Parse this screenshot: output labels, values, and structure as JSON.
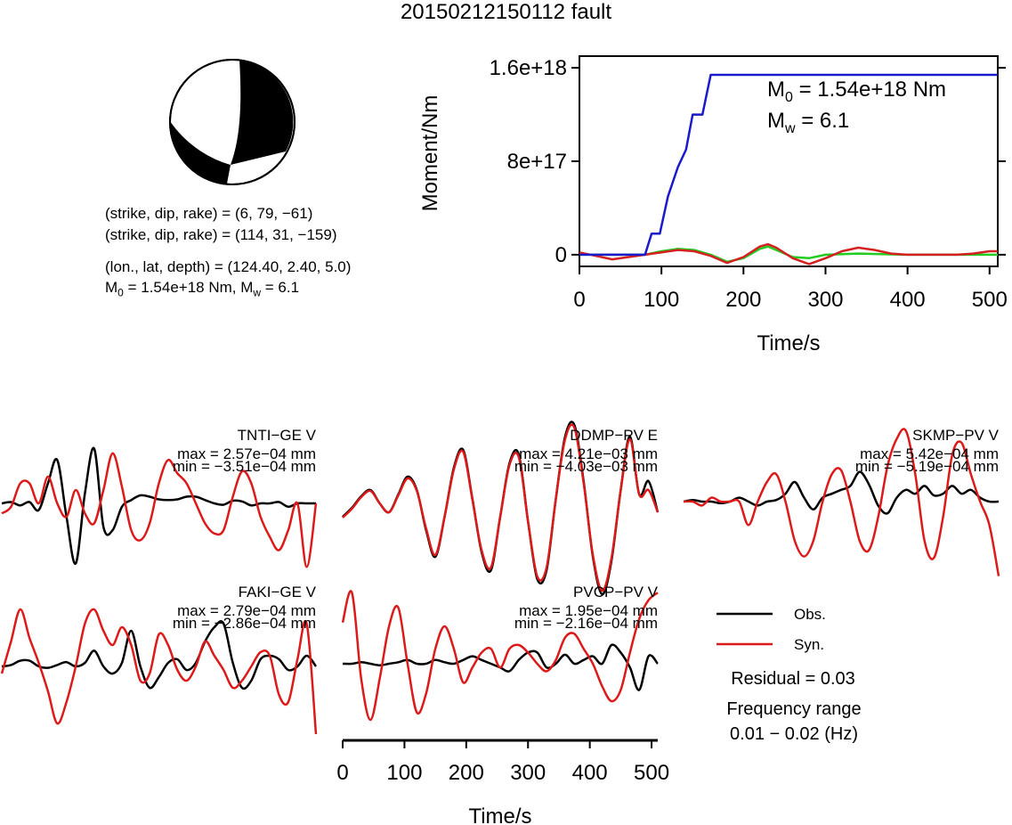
{
  "title": "20150212150112 fault",
  "mechanism": {
    "line1": "(strike, dip, rake) = (6, 79, −61)",
    "line2": "(strike, dip, rake) = (114, 31, −159)",
    "line3": "(lon., lat, depth) = (124.40, 2.40, 5.0)",
    "m0_prefix": "M",
    "m0_sub": "0",
    "m0_text": " = 1.54e+18 Nm, M",
    "mw_sub": "w",
    "mw_text": " = 6.1"
  },
  "moment_plot": {
    "ylabel": "Moment/Nm",
    "xlabel": "Time/s",
    "yticks": [
      "0",
      "8e+17",
      "1.6e+18"
    ],
    "xticks": [
      "0",
      "100",
      "200",
      "300",
      "400",
      "500"
    ],
    "m0_annotation": {
      "prefix": "M",
      "sub": "0",
      "text": " = 1.54e+18 Nm"
    },
    "mw_annotation": {
      "prefix": "M",
      "sub": "w",
      "text": " = 6.1"
    },
    "colors": {
      "cumulative": "#1a1acc",
      "red": "#d42020",
      "green": "#22cc22"
    }
  },
  "waveform_axis": {
    "xlabel": "Time/s",
    "xticks": [
      "0",
      "100",
      "200",
      "300",
      "400",
      "500"
    ]
  },
  "stations": [
    {
      "name": "TNTI−GE V",
      "max": "max = 2.57e−04 mm",
      "min": "min = −3.51e−04 mm"
    },
    {
      "name": "DDMP−PV E",
      "max": "max = 4.21e−03 mm",
      "min": "min = −4.03e−03 mm"
    },
    {
      "name": "SKMP−PV V",
      "max": "max = 5.42e−04 mm",
      "min": "min = −5.19e−04 mm"
    },
    {
      "name": "FAKI−GE V",
      "max": "max = 2.79e−04 mm",
      "min": "min = −2.86e−04 mm"
    },
    {
      "name": "PVCP−PV V",
      "max": "max = 1.95e−04 mm",
      "min": "min = −2.16e−04 mm"
    }
  ],
  "legend": {
    "obs": "Obs.",
    "syn": "Syn.",
    "obs_color": "#000000",
    "syn_color": "#dd1a1a",
    "residual": "Residual = 0.03",
    "freq_label": "Frequency range",
    "freq_value": "0.01 − 0.02 (Hz)"
  },
  "chart_data": [
    {
      "type": "line",
      "xlabel": "Time/s",
      "ylabel": "Moment/Nm",
      "xlim": [
        0,
        510
      ],
      "ylim": [
        -1e+17,
        1.7e+18
      ],
      "xticks": [
        0,
        100,
        200,
        300,
        400,
        500
      ],
      "yticks": [
        0,
        8e+17,
        1.6e+18
      ],
      "series": [
        {
          "color": "#1a1acc",
          "x": [
            0,
            80,
            88,
            98,
            108,
            120,
            130,
            138,
            142,
            150,
            160,
            510
          ],
          "y": [
            0,
            0,
            1.8e+17,
            1.8e+17,
            5e+17,
            7.5e+17,
            9e+17,
            1.2e+18,
            1.2e+18,
            1.2e+18,
            1.54e+18,
            1.54e+18
          ]
        },
        {
          "color": "#d42020",
          "x": [
            0,
            20,
            40,
            60,
            80,
            100,
            120,
            140,
            160,
            180,
            200,
            220,
            230,
            240,
            260,
            280,
            300,
            320,
            340,
            360,
            380,
            400,
            420,
            440,
            460,
            480,
            500,
            510
          ],
          "y": [
            2e+16,
            -1e+16,
            -4e+16,
            -2e+16,
            0,
            2e+16,
            4e+16,
            3e+16,
            -1e+16,
            -7e+16,
            -2e+16,
            7e+16,
            9e+16,
            6e+16,
            -3e+16,
            -8e+16,
            -3e+16,
            3e+16,
            6e+16,
            4e+16,
            1e+16,
            0,
            0,
            0,
            0,
            1e+16,
            3e+16,
            3e+16
          ]
        },
        {
          "color": "#22cc22",
          "x": [
            0,
            40,
            80,
            100,
            120,
            140,
            160,
            180,
            200,
            220,
            230,
            240,
            260,
            280,
            300,
            340,
            400,
            450,
            510
          ],
          "y": [
            0,
            0,
            0,
            3e+16,
            5e+16,
            4e+16,
            0,
            -6e+16,
            -3e+16,
            5e+16,
            7e+16,
            4e+16,
            -2e+16,
            -3e+16,
            0,
            1e+16,
            0,
            0,
            0
          ]
        }
      ]
    },
    {
      "type": "line",
      "station": "TNTI−GE V",
      "x_range": [
        0,
        510
      ],
      "y_range": [
        -1,
        1
      ],
      "series": [
        {
          "name": "Obs.",
          "y": [
            0.0,
            0.02,
            -0.03,
            0.02,
            -0.1,
            0.3,
            0.65,
            -0.2,
            -0.9,
            0.15,
            0.82,
            -0.35,
            -0.4,
            -0.05,
            0.05,
            0.12,
            0.1,
            0.06,
            0.05,
            0.06,
            0.1,
            0.1,
            0.05,
            0.0,
            -0.02,
            0.04,
            0.03,
            -0.03,
            0.0,
            0.0,
            0.02,
            -0.05,
            0.0,
            0.0,
            0.0
          ]
        },
        {
          "name": "Syn.",
          "y": [
            -0.15,
            -0.05,
            0.3,
            0.3,
            0.0,
            0.4,
            0.0,
            -0.2,
            0.2,
            -0.15,
            -0.3,
            0.2,
            0.75,
            0.25,
            -0.4,
            -0.55,
            -0.3,
            0.3,
            0.65,
            0.45,
            0.3,
            0.0,
            -0.3,
            -0.45,
            -0.4,
            0.1,
            0.48,
            0.3,
            -0.2,
            -0.5,
            -0.7,
            -0.4,
            0.0,
            -0.95,
            0.0
          ]
        }
      ]
    },
    {
      "type": "line",
      "station": "DDMP−PV E",
      "x_range": [
        0,
        510
      ],
      "y_range": [
        -1,
        1
      ],
      "series": [
        {
          "name": "Obs.",
          "y": [
            -0.05,
            0.05,
            0.18,
            0.25,
            0.1,
            0.0,
            0.2,
            0.4,
            0.25,
            -0.2,
            -0.5,
            -0.05,
            0.5,
            0.7,
            0.15,
            -0.45,
            -0.65,
            -0.05,
            0.55,
            0.65,
            -0.1,
            -0.75,
            -0.65,
            0.15,
            0.85,
            0.98,
            0.35,
            -0.5,
            -0.92,
            -0.55,
            0.25,
            0.85,
            0.2,
            0.35,
            0.0
          ]
        },
        {
          "name": "Syn.",
          "y": [
            -0.06,
            0.04,
            0.17,
            0.24,
            0.1,
            0.0,
            0.19,
            0.38,
            0.24,
            -0.18,
            -0.48,
            -0.05,
            0.48,
            0.68,
            0.14,
            -0.43,
            -0.62,
            -0.05,
            0.53,
            0.62,
            -0.1,
            -0.72,
            -0.62,
            0.15,
            0.82,
            0.95,
            0.33,
            -0.48,
            -0.88,
            -0.52,
            0.25,
            0.82,
            0.2,
            0.25,
            0.0
          ]
        }
      ]
    },
    {
      "type": "line",
      "station": "SKMP−PV V",
      "x_range": [
        0,
        510
      ],
      "y_range": [
        -1,
        1
      ],
      "series": [
        {
          "name": "Obs.",
          "y": [
            0.0,
            0.02,
            0.0,
            0.0,
            -0.02,
            0.0,
            0.05,
            0.0,
            -0.05,
            0.0,
            0.02,
            0.1,
            0.25,
            0.05,
            -0.1,
            0.05,
            0.1,
            0.15,
            0.2,
            0.38,
            0.22,
            -0.05,
            -0.15,
            0.05,
            0.15,
            0.1,
            0.2,
            0.08,
            0.1,
            0.2,
            0.1,
            0.15,
            0.05,
            0.0,
            0.0
          ]
        },
        {
          "name": "Syn.",
          "y": [
            0.0,
            0.0,
            -0.05,
            0.05,
            0.0,
            0.0,
            0.0,
            -0.3,
            0.0,
            0.25,
            0.35,
            0.0,
            -0.5,
            -0.7,
            -0.5,
            0.0,
            0.35,
            0.4,
            0.0,
            -0.5,
            -0.62,
            -0.2,
            0.45,
            0.8,
            0.9,
            0.35,
            -0.5,
            -0.72,
            -0.2,
            0.6,
            0.75,
            0.35,
            0.0,
            -0.3,
            -0.95
          ]
        }
      ]
    },
    {
      "type": "line",
      "station": "FAKI−GE V",
      "x_range": [
        0,
        510
      ],
      "y_range": [
        -1,
        1
      ],
      "series": [
        {
          "name": "Obs.",
          "y": [
            0.0,
            0.02,
            0.08,
            0.08,
            0.0,
            -0.02,
            0.02,
            0.06,
            0.0,
            0.05,
            0.22,
            0.0,
            -0.1,
            0.05,
            0.5,
            0.0,
            -0.3,
            -0.15,
            0.05,
            0.1,
            -0.05,
            0.05,
            0.35,
            0.55,
            0.6,
            0.05,
            -0.3,
            -0.2,
            0.1,
            0.15,
            0.1,
            -0.05,
            0.0,
            0.15,
            0.0
          ]
        },
        {
          "name": "Syn.",
          "y": [
            -0.1,
            0.35,
            0.8,
            0.4,
            0.05,
            -0.35,
            -0.8,
            -0.5,
            0.0,
            0.6,
            0.8,
            0.5,
            0.3,
            0.55,
            0.3,
            -0.2,
            -0.1,
            0.45,
            0.3,
            -0.05,
            -0.2,
            0.0,
            0.35,
            0.15,
            -0.05,
            -0.3,
            -0.2,
            0.0,
            0.2,
            0.15,
            -0.4,
            -0.5,
            0.1,
            0.6,
            -0.95
          ]
        }
      ]
    },
    {
      "type": "line",
      "station": "PVCP−PV V",
      "x_range": [
        0,
        510
      ],
      "y_range": [
        -1,
        1
      ],
      "series": [
        {
          "name": "Obs.",
          "y": [
            0.0,
            0.0,
            0.02,
            0.0,
            -0.02,
            0.0,
            0.02,
            0.05,
            0.0,
            0.0,
            0.05,
            0.02,
            0.0,
            0.05,
            0.1,
            0.05,
            0.0,
            -0.05,
            -0.1,
            0.05,
            0.15,
            0.15,
            -0.05,
            0.0,
            0.12,
            0.0,
            0.05,
            0.1,
            0.0,
            0.25,
            0.15,
            -0.05,
            -0.35,
            0.1,
            0.0
          ]
        },
        {
          "name": "Syn.",
          "y": [
            0.55,
            0.95,
            -0.2,
            -0.75,
            -0.2,
            0.5,
            0.75,
            0.0,
            -0.65,
            -0.4,
            0.2,
            0.5,
            0.2,
            -0.25,
            -0.05,
            0.15,
            0.2,
            -0.05,
            0.2,
            0.25,
            0.15,
            0.0,
            -0.1,
            0.05,
            0.35,
            0.4,
            0.2,
            0.0,
            -0.3,
            -0.5,
            -0.35,
            0.15,
            0.6,
            0.85,
            0.95
          ]
        }
      ]
    }
  ]
}
